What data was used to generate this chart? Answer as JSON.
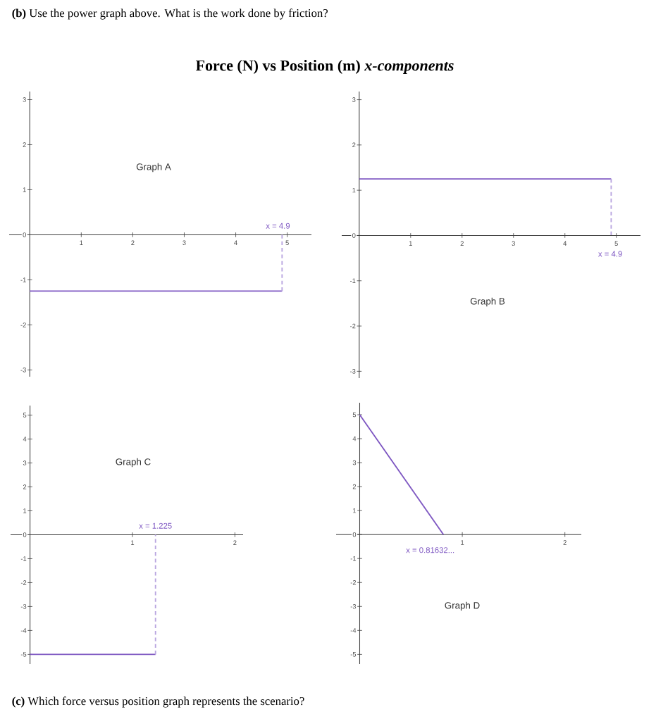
{
  "chart_data": [
    {
      "type": "line",
      "title": "Force (N) vs Position (m)  *x-components*",
      "xlim": [
        -0.4,
        5.47
      ],
      "ylim": [
        -3.15,
        3.18
      ],
      "xticks": [
        1,
        2,
        3,
        4,
        5
      ],
      "yticks": [
        -3,
        -2,
        -1,
        0,
        1,
        2,
        3
      ],
      "series": [
        {
          "color": "#7e57c2",
          "x": [
            0,
            4.9
          ],
          "values": [
            -1.25,
            -1.25
          ]
        },
        {
          "color": "#b9a6e0",
          "line_style": "dashed",
          "x": [
            4.9,
            4.9
          ],
          "values": [
            -1.25,
            0
          ]
        }
      ],
      "annotations": [
        "**(b)** Use the power graph above. What is the work done by friction?",
        "Graph A",
        {
          "text": "x = 4.9",
          "x": 4.9,
          "y": 0
        }
      ]
    },
    {
      "type": "line",
      "xlim": [
        -0.34,
        5.47
      ],
      "ylim": [
        -3.15,
        3.18
      ],
      "xticks": [
        1,
        2,
        3,
        4,
        5
      ],
      "yticks": [
        -3,
        -2,
        -1,
        0,
        1,
        2,
        3
      ],
      "series": [
        {
          "color": "#7e57c2",
          "x": [
            0,
            4.9
          ],
          "values": [
            1.25,
            1.25
          ]
        },
        {
          "color": "#b9a6e0",
          "line_style": "dashed",
          "x": [
            4.9,
            4.9
          ],
          "values": [
            1.25,
            0
          ]
        }
      ],
      "annotations": [
        "Graph B",
        {
          "text": "x = 4.9",
          "x": 4.9,
          "y": 0
        }
      ]
    },
    {
      "type": "line",
      "xlim": [
        -0.19,
        2.08
      ],
      "ylim": [
        -5.4,
        5.4
      ],
      "xticks": [
        1,
        2
      ],
      "yticks": [
        -5,
        -4,
        -3,
        -2,
        -1,
        0,
        1,
        2,
        3,
        4,
        5
      ],
      "series": [
        {
          "color": "#7e57c2",
          "x": [
            0,
            1.225
          ],
          "values": [
            -5,
            -5
          ]
        },
        {
          "color": "#b9a6e0",
          "line_style": "dashed",
          "x": [
            1.225,
            1.225
          ],
          "values": [
            -5,
            0
          ]
        }
      ],
      "annotations": [
        "Graph C",
        {
          "text": "x = 1.225",
          "x": 1.225,
          "y": 0
        }
      ]
    },
    {
      "type": "line",
      "xlim": [
        -0.23,
        2.16
      ],
      "ylim": [
        -5.4,
        5.5
      ],
      "xticks": [
        1,
        2
      ],
      "yticks": [
        -5,
        -4,
        -3,
        -2,
        -1,
        0,
        1,
        2,
        3,
        4,
        5
      ],
      "series": [
        {
          "color": "#7e57c2",
          "x": [
            0,
            0.81632
          ],
          "values": [
            5,
            0
          ]
        }
      ],
      "annotations": [
        "Graph D",
        {
          "text": "x = 0.81632...",
          "x": 0.81632,
          "y": 0
        },
        "**(c)** Which force versus position graph represents the scenario?"
      ]
    }
  ]
}
